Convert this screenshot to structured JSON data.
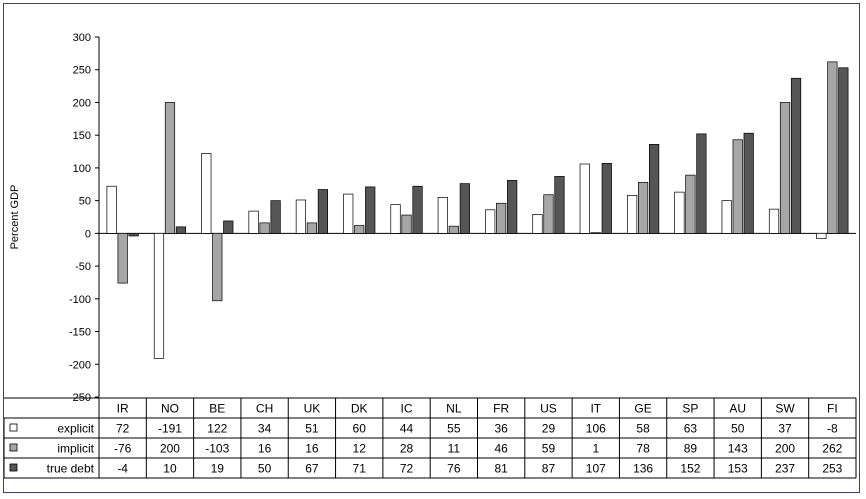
{
  "chart_data": {
    "type": "bar",
    "ylabel": "Percent GDP",
    "ylim": [
      -250,
      300
    ],
    "yticks": [
      300,
      250,
      200,
      150,
      100,
      50,
      0,
      -50,
      -100,
      -150,
      -200,
      -250
    ],
    "categories": [
      "IR",
      "NO",
      "BE",
      "CH",
      "UK",
      "DK",
      "IC",
      "NL",
      "FR",
      "US",
      "IT",
      "GE",
      "SP",
      "AU",
      "SW",
      "FI"
    ],
    "series": [
      {
        "name": "explicit",
        "color": "#ffffff",
        "values": [
          72,
          -191,
          122,
          34,
          51,
          60,
          44,
          55,
          36,
          29,
          106,
          58,
          63,
          50,
          37,
          -8
        ]
      },
      {
        "name": "implicit",
        "color": "#a6a6a6",
        "values": [
          -76,
          200,
          -103,
          16,
          16,
          12,
          28,
          11,
          46,
          59,
          1,
          78,
          89,
          143,
          200,
          262
        ]
      },
      {
        "name": "true debt",
        "color": "#555555",
        "values": [
          -4,
          10,
          19,
          50,
          67,
          71,
          72,
          76,
          81,
          87,
          107,
          136,
          152,
          153,
          237,
          253
        ]
      }
    ],
    "legend": "table-below",
    "grid": false
  }
}
